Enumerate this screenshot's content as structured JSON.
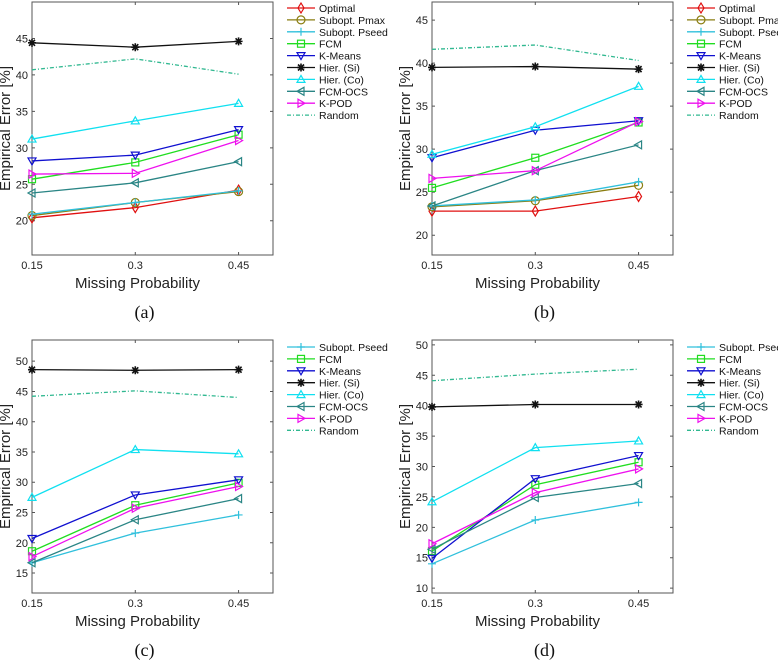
{
  "chart_data": [
    {
      "type": "line",
      "caption": "(a)",
      "xlabel": "Missing Probability",
      "ylabel": "Empirical Error [%]",
      "x": [
        0.15,
        0.3,
        0.45
      ],
      "xtick_labels": [
        "0.15",
        "0.3",
        "0.45"
      ],
      "xlim": [
        0.15,
        0.5
      ],
      "ylim": [
        15.3,
        50
      ],
      "yticks": [
        20,
        25,
        30,
        35,
        40,
        45
      ],
      "legend_placement": "outside-right",
      "series": [
        {
          "name": "Optimal",
          "color": "#e01010",
          "marker": "diamond",
          "values": [
            20.4,
            21.8,
            24.2
          ]
        },
        {
          "name": "Subopt. Pmax",
          "color": "#8a7d10",
          "marker": "circle",
          "values": [
            20.7,
            22.5,
            24.0
          ]
        },
        {
          "name": "Subopt. Pseed",
          "color": "#30c0dc",
          "marker": "plus",
          "values": [
            20.9,
            22.5,
            24.1
          ]
        },
        {
          "name": "FCM",
          "color": "#20dd20",
          "marker": "square",
          "values": [
            25.7,
            28.0,
            31.8
          ]
        },
        {
          "name": "K-Means",
          "color": "#1010d0",
          "marker": "triangle-down",
          "values": [
            28.2,
            29.0,
            32.5
          ]
        },
        {
          "name": "Hier. (Si)",
          "color": "#111111",
          "marker": "asterisk",
          "values": [
            44.4,
            43.8,
            44.6
          ]
        },
        {
          "name": "Hier. (Co)",
          "color": "#10e0f0",
          "marker": "triangle-up",
          "values": [
            31.2,
            33.7,
            36.1
          ]
        },
        {
          "name": "FCM-OCS",
          "color": "#2a8585",
          "marker": "triangle-left",
          "values": [
            23.8,
            25.2,
            28.1
          ]
        },
        {
          "name": "K-POD",
          "color": "#ee10ee",
          "marker": "triangle-right",
          "values": [
            26.4,
            26.5,
            31.0
          ]
        },
        {
          "name": "Random",
          "color": "#30b890",
          "marker": "none",
          "dashed": true,
          "values": [
            40.7,
            42.2,
            40.1
          ]
        }
      ]
    },
    {
      "type": "line",
      "caption": "(b)",
      "xlabel": "Missing Probability",
      "ylabel": "Empirical Error [%]",
      "x": [
        0.15,
        0.3,
        0.45
      ],
      "xtick_labels": [
        "0.15",
        "0.3",
        "0.45"
      ],
      "xlim": [
        0.15,
        0.5
      ],
      "ylim": [
        17.7,
        47.1
      ],
      "yticks": [
        20,
        25,
        30,
        35,
        40,
        45
      ],
      "legend_placement": "outside-right",
      "series": [
        {
          "name": "Optimal",
          "color": "#e01010",
          "marker": "diamond",
          "values": [
            22.8,
            22.8,
            24.5
          ]
        },
        {
          "name": "Subopt. Pmax",
          "color": "#8a7d10",
          "marker": "circle",
          "values": [
            23.3,
            24.0,
            25.8
          ]
        },
        {
          "name": "Subopt. Pseed",
          "color": "#30c0dc",
          "marker": "plus",
          "values": [
            23.4,
            24.1,
            26.2
          ]
        },
        {
          "name": "FCM",
          "color": "#20dd20",
          "marker": "square",
          "values": [
            25.5,
            29.0,
            33.1
          ]
        },
        {
          "name": "K-Means",
          "color": "#1010d0",
          "marker": "triangle-down",
          "values": [
            29.0,
            32.2,
            33.3
          ]
        },
        {
          "name": "Hier. (Si)",
          "color": "#111111",
          "marker": "asterisk",
          "values": [
            39.5,
            39.6,
            39.3
          ]
        },
        {
          "name": "Hier. (Co)",
          "color": "#10e0f0",
          "marker": "triangle-up",
          "values": [
            29.4,
            32.6,
            37.3
          ]
        },
        {
          "name": "FCM-OCS",
          "color": "#2a8585",
          "marker": "triangle-left",
          "values": [
            23.4,
            27.5,
            30.5
          ]
        },
        {
          "name": "K-POD",
          "color": "#ee10ee",
          "marker": "triangle-right",
          "values": [
            26.6,
            27.5,
            33.2
          ]
        },
        {
          "name": "Random",
          "color": "#30b890",
          "marker": "none",
          "dashed": true,
          "values": [
            41.6,
            42.1,
            40.3
          ]
        }
      ]
    },
    {
      "type": "line",
      "caption": "(c)",
      "xlabel": "Missing Probability",
      "ylabel": "Empirical Error [%]",
      "x": [
        0.15,
        0.3,
        0.45
      ],
      "xtick_labels": [
        "0.15",
        "0.3",
        "0.45"
      ],
      "xlim": [
        0.15,
        0.5
      ],
      "ylim": [
        11.7,
        53.5
      ],
      "yticks": [
        15,
        20,
        25,
        30,
        35,
        40,
        45,
        50
      ],
      "legend_placement": "outside-right",
      "series": [
        {
          "name": "Subopt. Pseed",
          "color": "#30c0dc",
          "marker": "plus",
          "values": [
            16.7,
            21.6,
            24.6
          ]
        },
        {
          "name": "FCM",
          "color": "#20dd20",
          "marker": "square",
          "values": [
            18.6,
            26.2,
            29.9
          ]
        },
        {
          "name": "K-Means",
          "color": "#1010d0",
          "marker": "triangle-down",
          "values": [
            20.7,
            27.9,
            30.4
          ]
        },
        {
          "name": "Hier. (Si)",
          "color": "#111111",
          "marker": "asterisk",
          "values": [
            48.6,
            48.5,
            48.6
          ]
        },
        {
          "name": "Hier. (Co)",
          "color": "#10e0f0",
          "marker": "triangle-up",
          "values": [
            27.5,
            35.4,
            34.7
          ]
        },
        {
          "name": "FCM-OCS",
          "color": "#2a8585",
          "marker": "triangle-left",
          "values": [
            16.7,
            23.8,
            27.3
          ]
        },
        {
          "name": "K-POD",
          "color": "#ee10ee",
          "marker": "triangle-right",
          "values": [
            17.7,
            25.7,
            29.3
          ]
        },
        {
          "name": "Random",
          "color": "#30b890",
          "marker": "none",
          "dashed": true,
          "values": [
            44.2,
            45.1,
            44.0
          ]
        }
      ]
    },
    {
      "type": "line",
      "caption": "(d)",
      "xlabel": "Missing Probability",
      "ylabel": "Empirical Error [%]",
      "x": [
        0.15,
        0.3,
        0.45
      ],
      "xtick_labels": [
        "0.15",
        "0.3",
        "0.45"
      ],
      "xlim": [
        0.15,
        0.5
      ],
      "ylim": [
        9.2,
        50.8
      ],
      "yticks": [
        10,
        15,
        20,
        25,
        30,
        35,
        40,
        45,
        50
      ],
      "legend_placement": "outside-right",
      "series": [
        {
          "name": "Subopt. Pseed",
          "color": "#30c0dc",
          "marker": "plus",
          "values": [
            14.0,
            21.2,
            24.1
          ]
        },
        {
          "name": "FCM",
          "color": "#20dd20",
          "marker": "square",
          "values": [
            16.1,
            27.0,
            30.7
          ]
        },
        {
          "name": "K-Means",
          "color": "#1010d0",
          "marker": "triangle-down",
          "values": [
            14.9,
            28.0,
            31.8
          ]
        },
        {
          "name": "Hier. (Si)",
          "color": "#111111",
          "marker": "asterisk",
          "values": [
            39.8,
            40.2,
            40.2
          ]
        },
        {
          "name": "Hier. (Co)",
          "color": "#10e0f0",
          "marker": "triangle-up",
          "values": [
            24.2,
            33.1,
            34.2
          ]
        },
        {
          "name": "FCM-OCS",
          "color": "#2a8585",
          "marker": "triangle-left",
          "values": [
            16.4,
            24.9,
            27.2
          ]
        },
        {
          "name": "K-POD",
          "color": "#ee10ee",
          "marker": "triangle-right",
          "values": [
            17.3,
            25.7,
            29.6
          ]
        },
        {
          "name": "Random",
          "color": "#30b890",
          "marker": "none",
          "dashed": true,
          "values": [
            44.1,
            45.2,
            46.0
          ]
        }
      ]
    }
  ]
}
